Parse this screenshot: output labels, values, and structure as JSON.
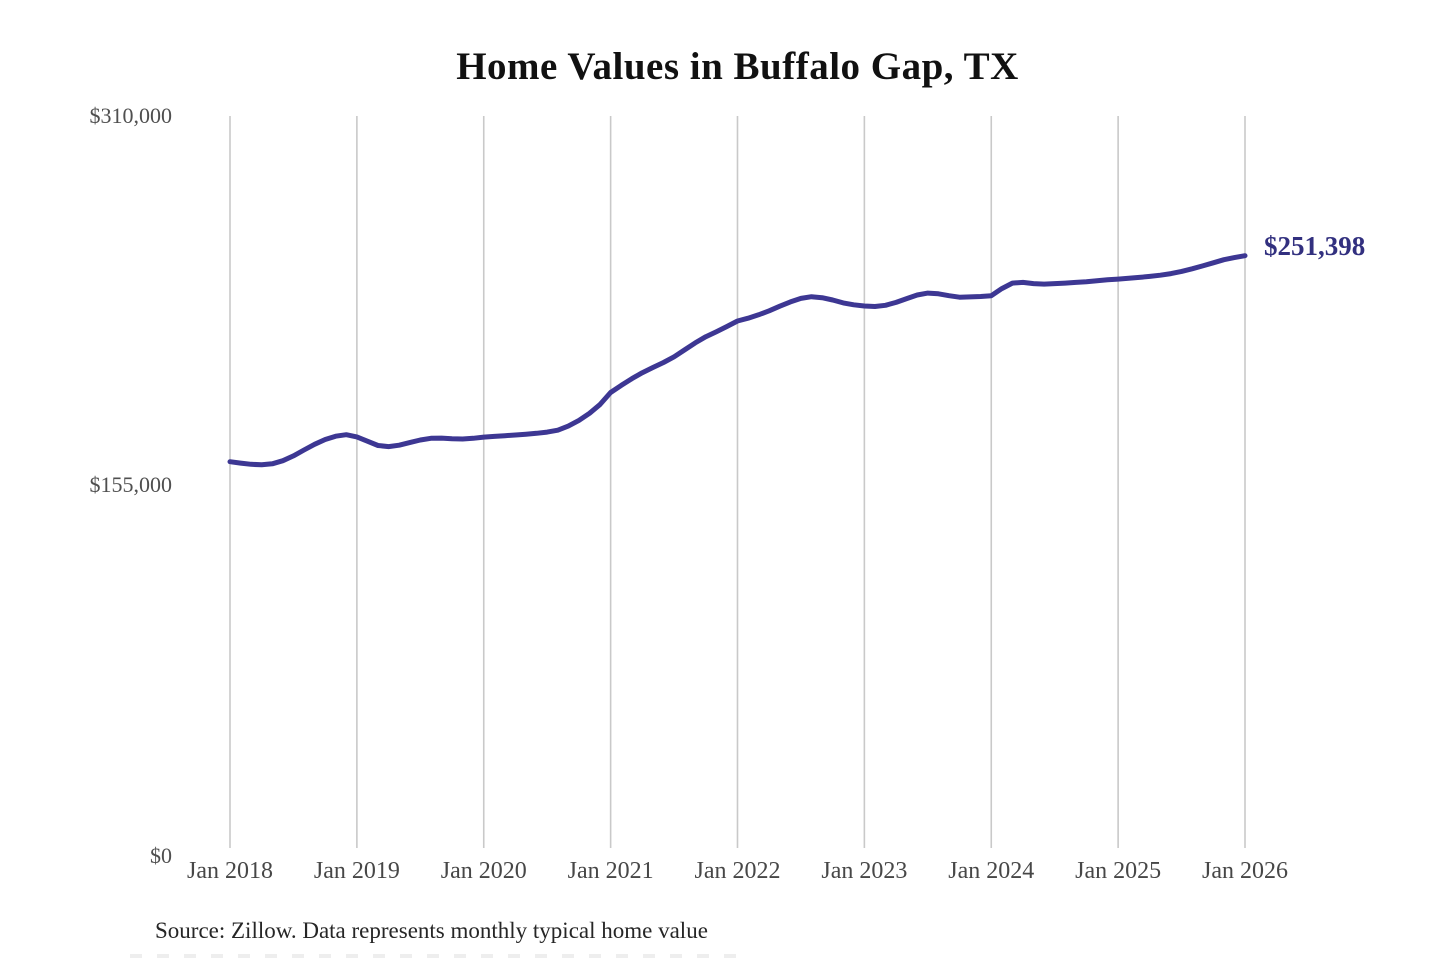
{
  "chart_data": {
    "type": "line",
    "title": "Home Values in Buffalo Gap, TX",
    "series_name": "Monthly typical home value",
    "interval": "monthly",
    "x_start": "Jan 2018",
    "x_end": "Jan 2026",
    "x_tick_labels": [
      "Jan 2018",
      "Jan 2019",
      "Jan 2020",
      "Jan 2021",
      "Jan 2022",
      "Jan 2023",
      "Jan 2024",
      "Jan 2025",
      "Jan 2026"
    ],
    "y_tick_labels": [
      "$0",
      "$155,000",
      "$310,000"
    ],
    "y_tick_values": [
      0,
      155000,
      310000
    ],
    "ylim": [
      0,
      310000
    ],
    "grid": "vertical-only",
    "legend": "none",
    "line_color": "#3d3793",
    "grid_color": "#c9c9c9",
    "end_label": "$251,398",
    "end_label_color": "#32307f",
    "latest_value": 251398,
    "source_note": "Source: Zillow. Data represents monthly typical home value",
    "values": [
      165000,
      164400,
      163900,
      163700,
      164100,
      165400,
      167400,
      169900,
      172300,
      174300,
      175700,
      176300,
      175400,
      173600,
      171800,
      171300,
      171900,
      173000,
      174100,
      174800,
      174900,
      174600,
      174500,
      174800,
      175300,
      175600,
      175900,
      176200,
      176500,
      176900,
      177400,
      178200,
      179900,
      182300,
      185300,
      189000,
      194000,
      197000,
      199800,
      202300,
      204500,
      206600,
      209000,
      211900,
      214800,
      217400,
      219500,
      221700,
      224000,
      225200,
      226600,
      228300,
      230200,
      232000,
      233500,
      234200,
      233800,
      232800,
      231600,
      230800,
      230300,
      230100,
      230600,
      231800,
      233400,
      234900,
      235700,
      235400,
      234600,
      234000,
      234100,
      234300,
      234600,
      237600,
      239900,
      240200,
      239700,
      239500,
      239700,
      239900,
      240200,
      240500,
      240900,
      241300,
      241600,
      241900,
      242300,
      242700,
      243200,
      243900,
      244800,
      245900,
      247100,
      248400,
      249700,
      250600,
      251398
    ]
  }
}
